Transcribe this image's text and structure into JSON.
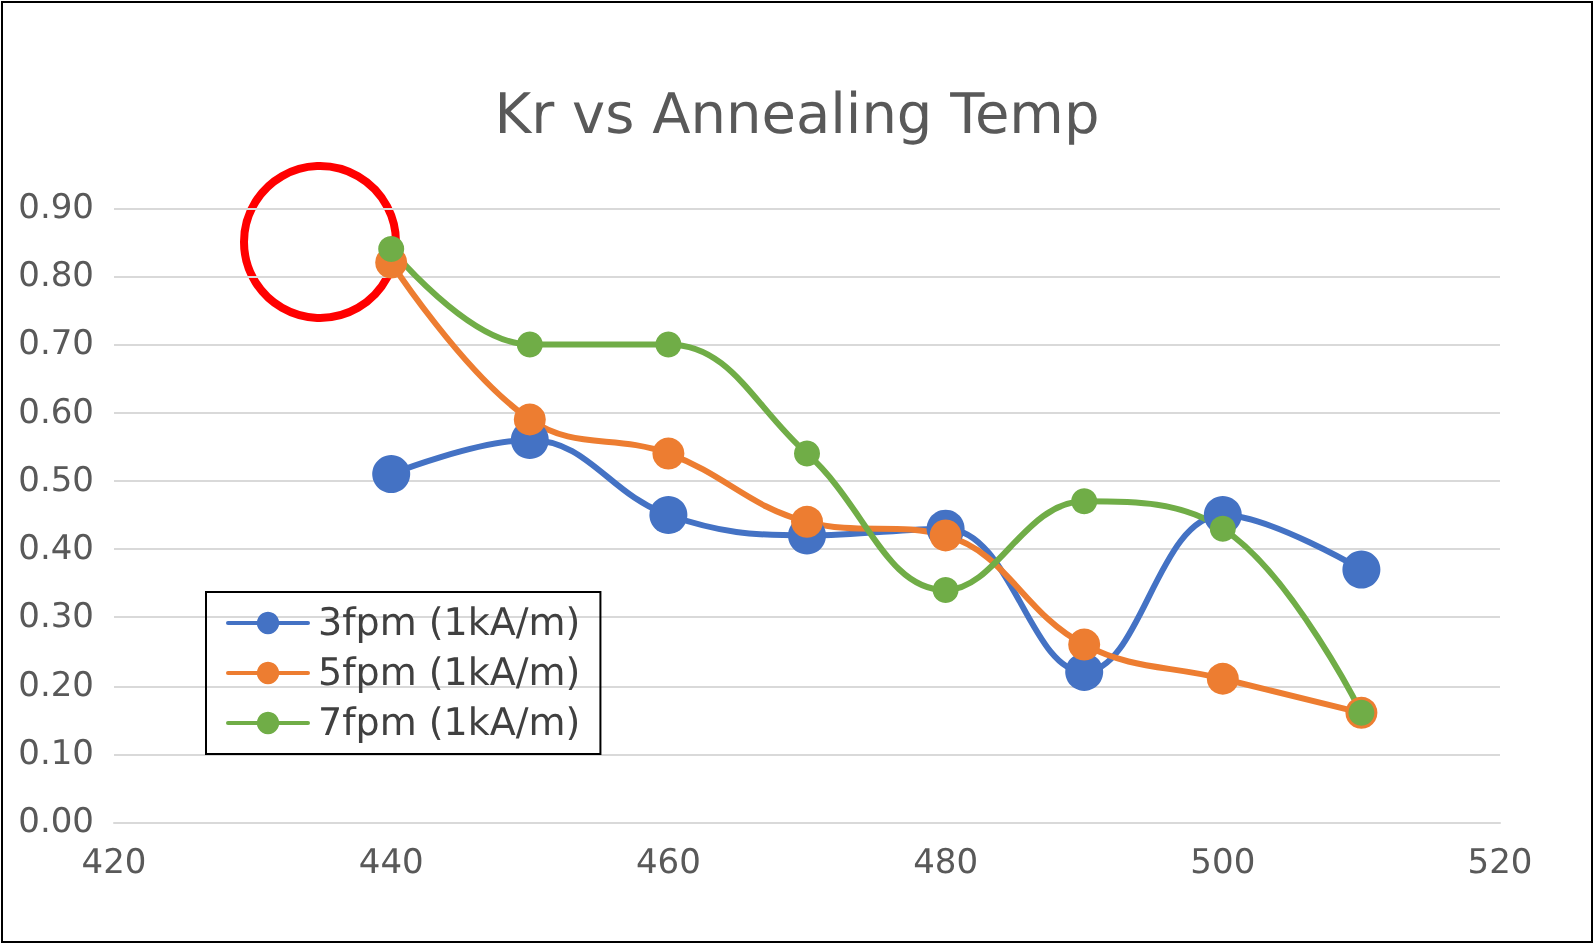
{
  "chart_data": {
    "type": "line",
    "title": "Kr vs Annealing Temp",
    "x": [
      440,
      450,
      460,
      470,
      480,
      490,
      500,
      510
    ],
    "series": [
      {
        "name": "3fpm (1kA/m)",
        "color": "#4472c4",
        "values": [
          0.51,
          0.56,
          0.45,
          0.42,
          0.43,
          0.22,
          0.45,
          0.37
        ]
      },
      {
        "name": "5fpm (1kA/m)",
        "color": "#ed7d31",
        "values": [
          0.82,
          0.59,
          0.54,
          0.44,
          0.42,
          0.26,
          0.21,
          0.16
        ]
      },
      {
        "name": "7fpm (1kA/m)",
        "color": "#70ad47",
        "values": [
          0.84,
          0.7,
          0.7,
          0.54,
          0.34,
          0.47,
          0.43,
          0.16
        ]
      }
    ],
    "xlim": [
      420,
      520
    ],
    "xticks": [
      420,
      440,
      460,
      480,
      500,
      520
    ],
    "ylim": [
      0,
      0.9
    ],
    "yticks": [
      {
        "value": 0,
        "label": "0.00"
      },
      {
        "value": 0.1,
        "label": "0.10"
      },
      {
        "value": 0.2,
        "label": "0.20"
      },
      {
        "value": 0.3,
        "label": "0.30"
      },
      {
        "value": 0.4,
        "label": "0.40"
      },
      {
        "value": 0.5,
        "label": "0.50"
      },
      {
        "value": 0.6,
        "label": "0.60"
      },
      {
        "value": 0.7,
        "label": "0.70"
      },
      {
        "value": 0.8,
        "label": "0.80"
      },
      {
        "value": 0.9,
        "label": "0.90"
      }
    ],
    "grid": "y",
    "legend": "bottom left",
    "marker": "circle",
    "line_style": "solid"
  }
}
